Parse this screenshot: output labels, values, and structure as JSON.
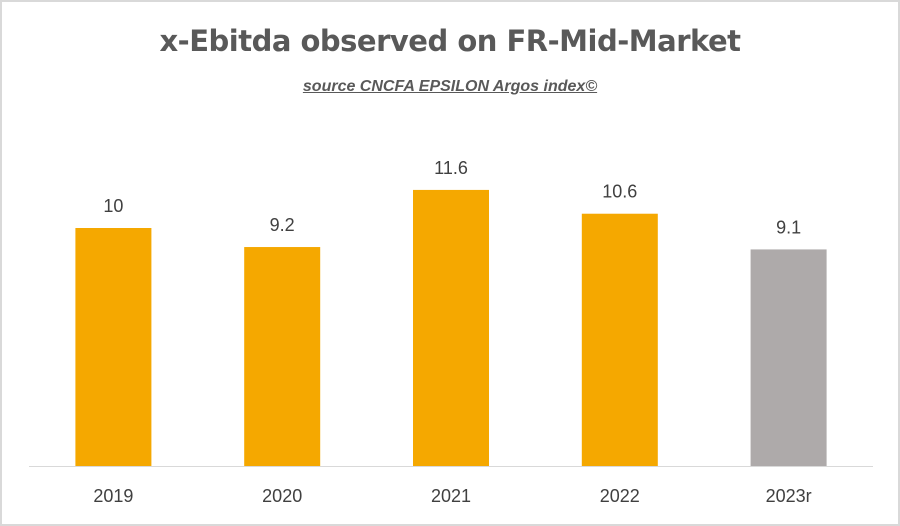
{
  "chart_data": {
    "type": "bar",
    "title": "x-Ebitda observed on FR-Mid-Market",
    "subtitle": "source CNCFA EPSILON Argos index©",
    "categories": [
      "2019",
      "2020",
      "2021",
      "2022",
      "2023r"
    ],
    "values": [
      10,
      9.2,
      11.6,
      10.6,
      9.1
    ],
    "value_labels": [
      "10",
      "9.2",
      "11.6",
      "10.6",
      "9.1"
    ],
    "colors": [
      "#f5a800",
      "#f5a800",
      "#f5a800",
      "#f5a800",
      "#aeaaaa"
    ],
    "xlabel": "",
    "ylabel": "",
    "ylim": [
      0,
      12
    ],
    "grid": false,
    "legend": "none",
    "axis_color": "#d9d9d9"
  }
}
